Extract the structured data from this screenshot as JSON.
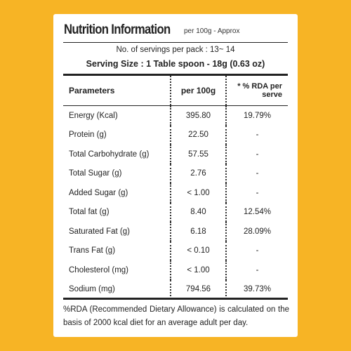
{
  "header": {
    "title": "Nutrition Information",
    "subtitle": "per 100g - Approx"
  },
  "servings": "No. of servings per pack : 13~ 14",
  "serving_size": "Serving Size : 1 Table spoon - 18g (0.63 oz)",
  "table": {
    "columns": [
      "Parameters",
      "per 100g",
      "* % RDA per serve"
    ],
    "rows": [
      [
        "Energy (Kcal)",
        "395.80",
        "19.79%"
      ],
      [
        "Protein (g)",
        "22.50",
        "-"
      ],
      [
        "Total Carbohydrate (g)",
        "57.55",
        "-"
      ],
      [
        "Total Sugar (g)",
        "2.76",
        "-"
      ],
      [
        "Added Sugar (g)",
        "< 1.00",
        "-"
      ],
      [
        "Total fat (g)",
        "8.40",
        "12.54%"
      ],
      [
        "Saturated Fat (g)",
        "6.18",
        "28.09%"
      ],
      [
        "Trans Fat (g)",
        "< 0.10",
        "-"
      ],
      [
        "Cholesterol (mg)",
        "< 1.00",
        "-"
      ],
      [
        "Sodium (mg)",
        "794.56",
        "39.73%"
      ]
    ]
  },
  "footnote": "%RDA (Recommended Dietary Allowance) is calculated on the basis of 2000 kcal diet for an average adult per day."
}
